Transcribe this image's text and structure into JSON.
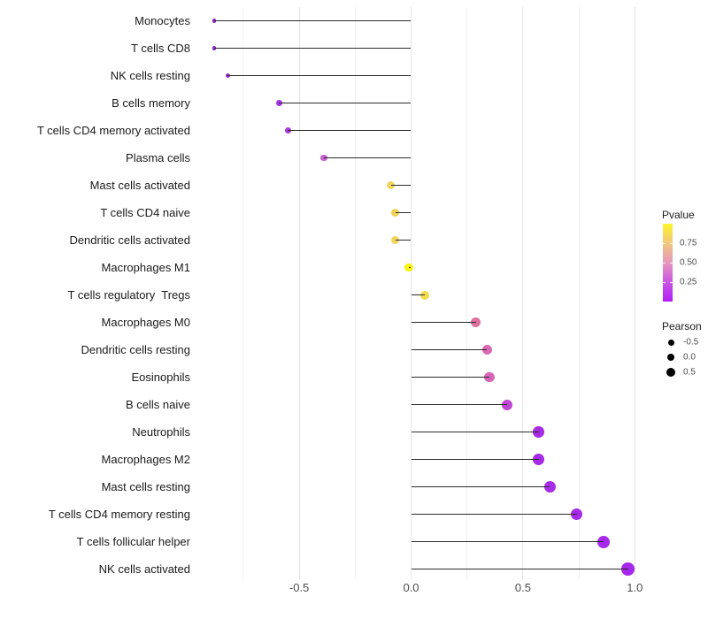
{
  "figure": {
    "background": "#FFFFFF"
  },
  "chart_data": {
    "type": "scatter",
    "variant": "lollipop",
    "orientation": "horizontal",
    "title": "",
    "xlabel": "",
    "ylabel": "",
    "categories": [
      "Monocytes",
      "T cells CD8",
      "NK cells resting",
      "B cells memory",
      "T cells CD4 memory activated",
      "Plasma cells",
      "Mast cells activated",
      "T cells CD4 naive",
      "Dendritic cells activated",
      "Macrophages M1",
      "T cells regulatory  Tregs",
      "Macrophages M0",
      "Dendritic cells resting",
      "Eosinophils",
      "B cells naive",
      "Neutrophils",
      "Macrophages M2",
      "Mast cells resting",
      "T cells CD4 memory resting",
      "T cells follicular helper",
      "NK cells activated"
    ],
    "series": [
      {
        "name": "Pearson",
        "values": [
          -0.88,
          -0.88,
          -0.82,
          -0.59,
          -0.55,
          -0.39,
          -0.09,
          -0.07,
          -0.07,
          -0.01,
          0.06,
          0.29,
          0.34,
          0.35,
          0.43,
          0.57,
          0.57,
          0.62,
          0.74,
          0.86,
          0.97
        ]
      }
    ],
    "point_colors": [
      "#8F27C8",
      "#8F27C8",
      "#9A2BD4",
      "#A637DE",
      "#A93CDB",
      "#C75FD3",
      "#F0D45C",
      "#F0D156",
      "#F0D45C",
      "#FBF30D",
      "#F2DB4E",
      "#DE709E",
      "#DA68B4",
      "#D765BB",
      "#BD46D2",
      "#A62BE4",
      "#A62BE4",
      "#A82DE6",
      "#A52BE8",
      "#A528EB",
      "#A527EC"
    ],
    "stem_color": "#2B2B2B",
    "x_ticks": {
      "values": [
        -0.5,
        0.0,
        0.5,
        1.0
      ],
      "labels": [
        "-0.5",
        "0.0",
        "0.5",
        "1.0"
      ]
    },
    "xlim": [
      -0.98,
      1.06
    ],
    "gridlines": {
      "major": [
        -0.5,
        0.0,
        0.5,
        1.0
      ],
      "minor": [
        -0.75,
        -0.25,
        0.25,
        0.75
      ]
    },
    "grid": "vertical-only",
    "legend_position": "right"
  },
  "legend": {
    "pvalue": {
      "title": "Pvalue",
      "tick_labels": [
        "0.75",
        "0.50",
        "0.25"
      ],
      "tick_values": [
        0.75,
        0.5,
        0.25
      ],
      "range": [
        1.0,
        0.0
      ],
      "gradient_stops": [
        "#FCF42C",
        "#F2C77E",
        "#E697BC",
        "#CC55E4",
        "#B01DF4"
      ]
    },
    "pearson": {
      "title": "Pearson",
      "dot_color": "#000000",
      "items": [
        {
          "label": "-0.5",
          "size": 7
        },
        {
          "label": "0.0",
          "size": 8.5
        },
        {
          "label": "0.5",
          "size": 10
        }
      ]
    }
  }
}
